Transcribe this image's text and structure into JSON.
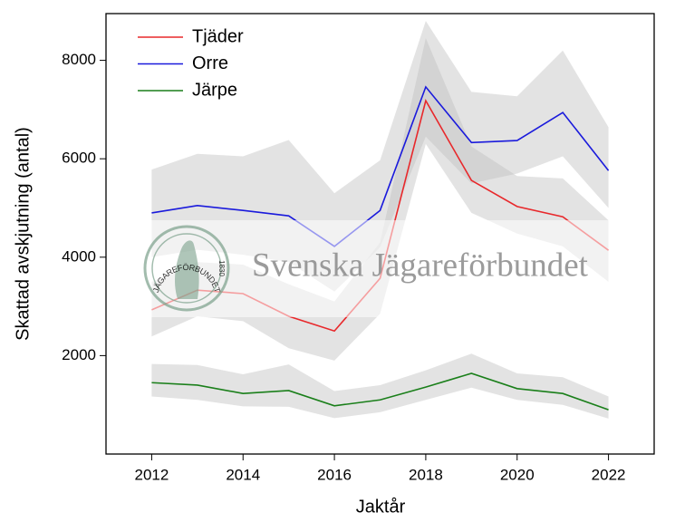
{
  "chart_data": {
    "type": "line",
    "x_label": "Jaktår",
    "y_label": "Skattad avskjutning (antal)",
    "x": [
      2012,
      2013,
      2014,
      2015,
      2016,
      2017,
      2018,
      2019,
      2020,
      2021,
      2022
    ],
    "series": [
      {
        "name": "Tjäder",
        "color": "#e8282b",
        "values": [
          2930,
          3330,
          3260,
          2800,
          2500,
          3570,
          7180,
          5560,
          5030,
          4820,
          4140
        ],
        "lower": [
          2390,
          2800,
          2700,
          2150,
          1900,
          2850,
          6300,
          4900,
          4480,
          4220,
          3500
        ],
        "upper": [
          3500,
          3900,
          3850,
          3450,
          3100,
          4300,
          8450,
          6250,
          5650,
          5600,
          4750
        ]
      },
      {
        "name": "Orre",
        "color": "#1a1adc",
        "values": [
          4900,
          5050,
          4950,
          4840,
          4220,
          4950,
          7460,
          6330,
          6370,
          6940,
          5760
        ],
        "lower": [
          4000,
          4150,
          4050,
          3900,
          3300,
          4200,
          6450,
          5500,
          5700,
          6050,
          5000
        ],
        "upper": [
          5780,
          6100,
          6050,
          6380,
          5300,
          5970,
          8800,
          7360,
          7270,
          8200,
          6640
        ]
      },
      {
        "name": "Järpe",
        "color": "#1a7f1a",
        "values": [
          1450,
          1400,
          1230,
          1290,
          980,
          1100,
          1360,
          1640,
          1330,
          1230,
          900
        ],
        "lower": [
          1170,
          1100,
          970,
          960,
          730,
          850,
          1100,
          1350,
          1100,
          1000,
          720
        ],
        "upper": [
          1830,
          1810,
          1620,
          1820,
          1280,
          1400,
          1700,
          2040,
          1640,
          1560,
          1170
        ]
      }
    ],
    "band_color": "#bdbdbd",
    "xlim": [
      2011,
      2023
    ],
    "ylim": [
      0,
      8950
    ],
    "xticks": [
      2012,
      2014,
      2016,
      2018,
      2020,
      2022
    ],
    "yticks": [
      2000,
      4000,
      6000,
      8000
    ],
    "legend": "upper left",
    "watermark": "Svenska Jägareförbundet",
    "logo_text": "JÄGAREFÖRBUNDET",
    "logo_year": "1830"
  }
}
